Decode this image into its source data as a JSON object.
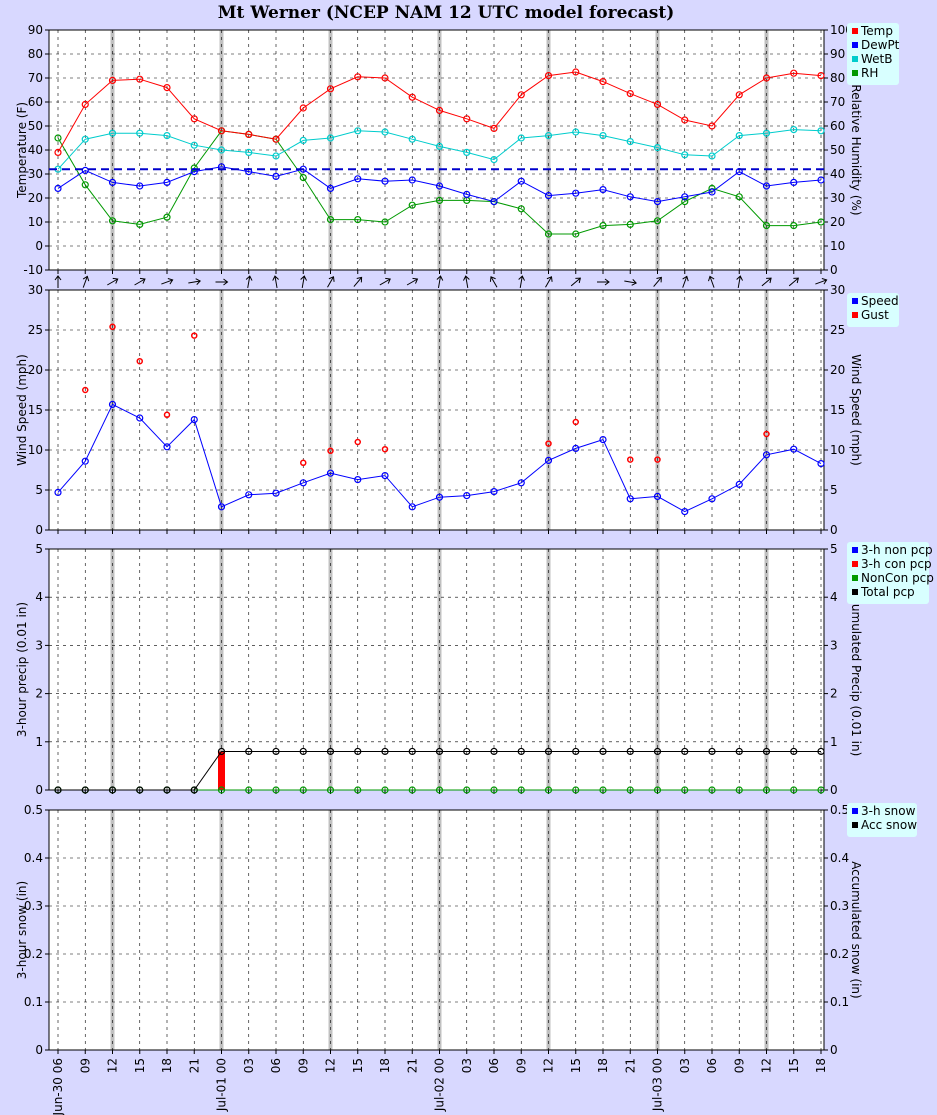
{
  "title": "Mt Werner (NCEP NAM 12 UTC model forecast)",
  "x_tick_labels": [
    "Jun-30 06",
    "09",
    "12",
    "15",
    "18",
    "21",
    "Jul-01 00",
    "03",
    "06",
    "09",
    "12",
    "15",
    "18",
    "21",
    "Jul-02 00",
    "03",
    "06",
    "09",
    "12",
    "15",
    "18",
    "21",
    "Jul-03 00",
    "03",
    "06",
    "09",
    "12",
    "15",
    "18"
  ],
  "colors": {
    "temp": "#ff0000",
    "dewpt": "#0000ff",
    "wetb": "#00cccc",
    "rh": "#009900",
    "speed": "#0000ff",
    "gust": "#ff0000",
    "non_pcp": "#0000ff",
    "con_pcp": "#ff0000",
    "noncon_pcp": "#009900",
    "total_pcp": "#000000",
    "snow": "#0000ff",
    "acc_snow": "#000000",
    "background": "#d8d8ff",
    "legend_bg": "#d8ffff"
  },
  "chart_data": [
    {
      "type": "line",
      "name": "temperature-panel",
      "ylabel": "Temperature (F)",
      "y2label": "Relative Humidity (%)",
      "ylim": [
        -10,
        90
      ],
      "y2lim": [
        0,
        100
      ],
      "yticks": [
        "-10",
        "0",
        "10",
        "20",
        "30",
        "40",
        "50",
        "60",
        "70",
        "80",
        "90"
      ],
      "y2ticks": [
        "0",
        "10",
        "20",
        "30",
        "40",
        "50",
        "60",
        "70",
        "80",
        "90",
        "100"
      ],
      "freezing_line": 32,
      "legend": [
        "Temp",
        "DewPt",
        "WetB",
        "RH"
      ],
      "series": [
        {
          "name": "Temp",
          "axis": "left",
          "values": [
            39,
            59,
            69,
            69.5,
            66,
            53,
            48,
            46.5,
            44.5,
            57.5,
            65.5,
            70.5,
            70,
            62,
            56.5,
            53,
            49,
            63,
            71,
            72.5,
            68.5,
            63.5,
            59,
            52.5,
            50,
            63,
            70,
            72,
            71
          ]
        },
        {
          "name": "DewPt",
          "axis": "left",
          "values": [
            24,
            31.5,
            26.5,
            25,
            26.5,
            31,
            33,
            31,
            29,
            32,
            24,
            28,
            27,
            27.5,
            25,
            21.5,
            18.5,
            27,
            21,
            22,
            23.5,
            20.5,
            18.5,
            20.5,
            22.5,
            31,
            25,
            26.5,
            27.5
          ]
        },
        {
          "name": "WetB",
          "axis": "left",
          "values": [
            32,
            44.5,
            47,
            47,
            46,
            42,
            40,
            39,
            37.5,
            44,
            45,
            48,
            47.5,
            44.5,
            41.5,
            39,
            36,
            45,
            46,
            47.5,
            46,
            43.5,
            41,
            38,
            37.5,
            46,
            47,
            48.5,
            48
          ]
        },
        {
          "name": "RH",
          "axis": "right",
          "values": [
            55,
            35.5,
            20.5,
            19,
            22,
            42.5,
            58,
            56.5,
            54.5,
            38.5,
            21,
            21,
            20,
            27,
            29,
            29,
            28.5,
            25.5,
            15,
            15,
            18.5,
            19,
            20.5,
            28.5,
            34,
            30.5,
            18.5,
            18.5,
            20
          ]
        }
      ],
      "wind_direction_deg": [
        0,
        20,
        60,
        60,
        70,
        80,
        90,
        10,
        350,
        10,
        30,
        40,
        60,
        60,
        10,
        350,
        330,
        10,
        30,
        50,
        90,
        100,
        40,
        20,
        340,
        10,
        50,
        50,
        70
      ]
    },
    {
      "type": "line",
      "name": "wind-panel",
      "ylabel": "Wind Speed (mph)",
      "y2label": "Wind Speed (mph)",
      "ylim": [
        0,
        30
      ],
      "yticks": [
        "0",
        "5",
        "10",
        "15",
        "20",
        "25",
        "30"
      ],
      "legend": [
        "Speed",
        "Gust"
      ],
      "series": [
        {
          "name": "Speed",
          "values": [
            4.7,
            8.6,
            15.7,
            14,
            10.4,
            13.8,
            2.9,
            4.4,
            4.6,
            5.9,
            7.1,
            6.3,
            6.8,
            2.9,
            4.1,
            4.3,
            4.8,
            5.9,
            8.7,
            10.2,
            11.3,
            3.9,
            4.2,
            2.3,
            3.9,
            5.7,
            9.4,
            10.1,
            8.3
          ]
        },
        {
          "name": "Gust",
          "values": [
            null,
            17.5,
            25.4,
            21.1,
            14.4,
            24.3,
            null,
            null,
            null,
            8.4,
            9.9,
            11,
            10.1,
            null,
            null,
            null,
            null,
            null,
            10.8,
            13.5,
            null,
            8.8,
            8.8,
            null,
            null,
            null,
            12,
            null,
            null
          ]
        }
      ]
    },
    {
      "type": "bar",
      "name": "precip-panel",
      "ylabel": "3-hour precip (0.01 in)",
      "y2label": "Accumulated Precip (0.01 in)",
      "ylim": [
        0,
        5
      ],
      "yticks": [
        "0",
        "1",
        "2",
        "3",
        "4",
        "5"
      ],
      "legend": [
        "3-h non pcp",
        "3-h con pcp",
        "NonCon pcp",
        "Total pcp"
      ],
      "series": [
        {
          "name": "3-h con pcp",
          "values": [
            0,
            0,
            0,
            0,
            0,
            0,
            0.8,
            0,
            0,
            0,
            0,
            0,
            0,
            0,
            0,
            0,
            0,
            0,
            0,
            0,
            0,
            0,
            0,
            0,
            0,
            0,
            0,
            0,
            0
          ]
        },
        {
          "name": "NonCon pcp",
          "values": [
            0,
            0,
            0,
            0,
            0,
            0,
            0,
            0,
            0,
            0,
            0,
            0,
            0,
            0,
            0,
            0,
            0,
            0,
            0,
            0,
            0,
            0,
            0,
            0,
            0,
            0,
            0,
            0,
            0
          ]
        },
        {
          "name": "Total pcp",
          "values": [
            0,
            0,
            0,
            0,
            0,
            0,
            0.8,
            0.8,
            0.8,
            0.8,
            0.8,
            0.8,
            0.8,
            0.8,
            0.8,
            0.8,
            0.8,
            0.8,
            0.8,
            0.8,
            0.8,
            0.8,
            0.8,
            0.8,
            0.8,
            0.8,
            0.8,
            0.8,
            0.8
          ]
        }
      ]
    },
    {
      "type": "line",
      "name": "snow-panel",
      "ylabel": "3-hour snow (in)",
      "y2label": "Accumulated snow (in)",
      "ylim": [
        0,
        0.5
      ],
      "yticks": [
        "0",
        "0.1",
        "0.2",
        "0.3",
        "0.4",
        "0.5"
      ],
      "legend": [
        "3-h snow",
        "Acc snow"
      ],
      "series": []
    }
  ]
}
